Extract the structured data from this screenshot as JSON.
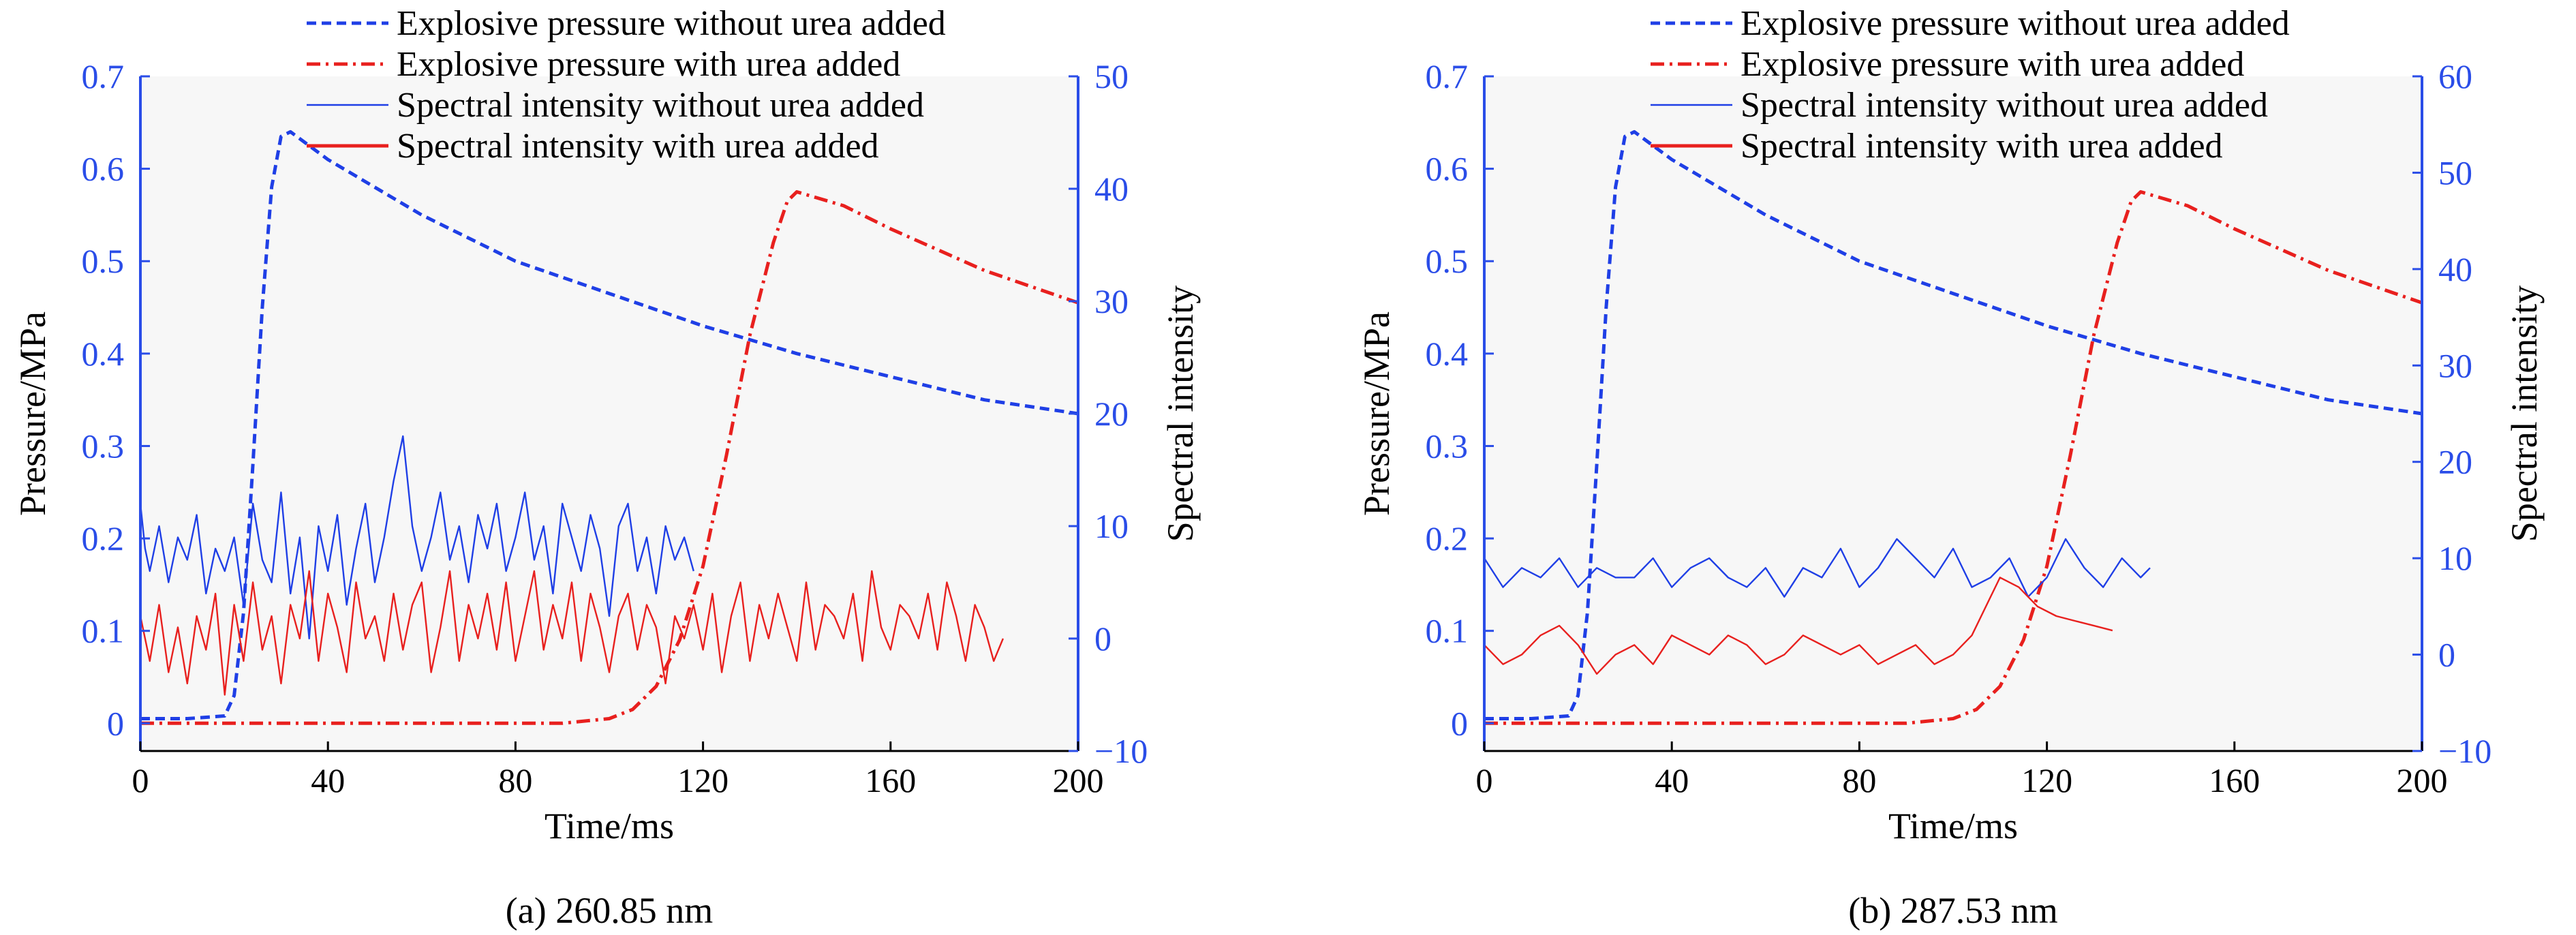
{
  "chart_data": [
    {
      "type": "line",
      "caption": "(a) 260.85 nm",
      "xlabel": "Time/ms",
      "ylabel_left": "Pressure/MPa",
      "ylabel_right": "Spectral intensity",
      "xlim": [
        0,
        200
      ],
      "ylim_left": [
        -0.03,
        0.7
      ],
      "ylim_right": [
        -10,
        50
      ],
      "x_ticks": [
        "0",
        "40",
        "80",
        "120",
        "160",
        "200"
      ],
      "left_ticks": [
        "0",
        "0.1",
        "0.2",
        "0.3",
        "0.4",
        "0.5",
        "0.6",
        "0.7"
      ],
      "right_ticks": [
        "−10",
        "0",
        "10",
        "20",
        "30",
        "40",
        "50"
      ],
      "legend": [
        "Explosive pressure without urea added",
        "Explosive pressure with urea added",
        "Spectral intensity without urea added",
        "Spectral intensity with urea added"
      ],
      "grid": false,
      "series": [
        {
          "name": "Explosive pressure without urea added",
          "axis": "left",
          "x": [
            0,
            10,
            18,
            20,
            22,
            24,
            26,
            28,
            30,
            32,
            40,
            60,
            80,
            100,
            120,
            140,
            160,
            180,
            200
          ],
          "y": [
            0.005,
            0.005,
            0.008,
            0.03,
            0.12,
            0.28,
            0.45,
            0.58,
            0.635,
            0.64,
            0.61,
            0.55,
            0.5,
            0.465,
            0.43,
            0.4,
            0.375,
            0.35,
            0.335
          ]
        },
        {
          "name": "Explosive pressure with urea added",
          "axis": "left",
          "x": [
            0,
            90,
            100,
            105,
            110,
            115,
            120,
            125,
            130,
            135,
            138,
            140,
            150,
            160,
            180,
            200
          ],
          "y": [
            0,
            0,
            0.005,
            0.015,
            0.04,
            0.09,
            0.17,
            0.29,
            0.42,
            0.52,
            0.565,
            0.575,
            0.56,
            0.535,
            0.49,
            0.455
          ]
        },
        {
          "name": "Spectral intensity without urea added",
          "axis": "right",
          "x": [
            0,
            1,
            2,
            4,
            6,
            8,
            10,
            12,
            14,
            16,
            18,
            20,
            22,
            24,
            26,
            28,
            30,
            32,
            34,
            36,
            38,
            40,
            42,
            44,
            46,
            48,
            50,
            52,
            54,
            56,
            58,
            60,
            62,
            64,
            66,
            68,
            70,
            72,
            74,
            76,
            78,
            80,
            82,
            84,
            86,
            88,
            90,
            92,
            94,
            96,
            98,
            100,
            102,
            104,
            106,
            108,
            110,
            112,
            114,
            116,
            118
          ],
          "y": [
            12,
            8,
            6,
            10,
            5,
            9,
            7,
            11,
            4,
            8,
            6,
            9,
            3,
            12,
            7,
            5,
            13,
            4,
            9,
            0,
            10,
            6,
            11,
            3,
            8,
            12,
            5,
            9,
            14,
            18,
            10,
            6,
            9,
            13,
            7,
            10,
            5,
            11,
            8,
            12,
            6,
            9,
            13,
            7,
            10,
            4,
            12,
            9,
            6,
            11,
            8,
            2,
            10,
            12,
            6,
            9,
            4,
            10,
            7,
            9,
            6
          ]
        },
        {
          "name": "Spectral intensity with urea added",
          "axis": "right",
          "x": [
            0,
            2,
            4,
            6,
            8,
            10,
            12,
            14,
            16,
            18,
            20,
            22,
            24,
            26,
            28,
            30,
            32,
            34,
            36,
            38,
            40,
            42,
            44,
            46,
            48,
            50,
            52,
            54,
            56,
            58,
            60,
            62,
            64,
            66,
            68,
            70,
            72,
            74,
            76,
            78,
            80,
            82,
            84,
            86,
            88,
            90,
            92,
            94,
            96,
            98,
            100,
            102,
            104,
            106,
            108,
            110,
            112,
            114,
            116,
            118,
            120,
            122,
            124,
            126,
            128,
            130,
            132,
            134,
            136,
            138,
            140,
            142,
            144,
            146,
            148,
            150,
            152,
            154,
            156,
            158,
            160,
            162,
            164,
            166,
            168,
            170,
            172,
            174,
            176,
            178,
            180,
            182,
            184
          ],
          "y": [
            2,
            -2,
            3,
            -3,
            1,
            -4,
            2,
            -1,
            4,
            -5,
            3,
            -2,
            5,
            -1,
            2,
            -4,
            3,
            0,
            6,
            -2,
            4,
            1,
            -3,
            5,
            0,
            2,
            -2,
            4,
            -1,
            3,
            5,
            -3,
            1,
            6,
            -2,
            3,
            0,
            4,
            -1,
            5,
            -2,
            2,
            6,
            -1,
            3,
            0,
            5,
            -2,
            4,
            1,
            -3,
            2,
            4,
            -1,
            3,
            1,
            -4,
            2,
            0,
            3,
            -1,
            4,
            -3,
            2,
            5,
            -2,
            3,
            0,
            4,
            1,
            -2,
            5,
            -1,
            3,
            2,
            0,
            4,
            -2,
            6,
            1,
            -1,
            3,
            2,
            0,
            4,
            -1,
            5,
            2,
            -2,
            3,
            1,
            -2,
            0
          ]
        }
      ]
    },
    {
      "type": "line",
      "caption": "(b) 287.53 nm",
      "xlabel": "Time/ms",
      "ylabel_left": "Pressure/MPa",
      "ylabel_right": "Spectral intensity",
      "xlim": [
        0,
        200
      ],
      "ylim_left": [
        -0.03,
        0.7
      ],
      "ylim_right": [
        -10,
        60
      ],
      "x_ticks": [
        "0",
        "40",
        "80",
        "120",
        "160",
        "200"
      ],
      "left_ticks": [
        "0",
        "0.1",
        "0.2",
        "0.3",
        "0.4",
        "0.5",
        "0.6",
        "0.7"
      ],
      "right_ticks": [
        "−10",
        "0",
        "10",
        "20",
        "30",
        "40",
        "50",
        "60"
      ],
      "legend": [
        "Explosive pressure without urea added",
        "Explosive pressure with urea added",
        "Spectral intensity without urea added",
        "Spectral intensity with urea added"
      ],
      "grid": false,
      "series": [
        {
          "name": "Explosive pressure without urea added",
          "axis": "left",
          "x": [
            0,
            10,
            18,
            20,
            22,
            24,
            26,
            28,
            30,
            32,
            40,
            60,
            80,
            100,
            120,
            140,
            160,
            180,
            200
          ],
          "y": [
            0.005,
            0.005,
            0.008,
            0.03,
            0.12,
            0.28,
            0.45,
            0.58,
            0.635,
            0.64,
            0.61,
            0.55,
            0.5,
            0.465,
            0.43,
            0.4,
            0.375,
            0.35,
            0.335
          ]
        },
        {
          "name": "Explosive pressure with urea added",
          "axis": "left",
          "x": [
            0,
            90,
            100,
            105,
            110,
            115,
            120,
            125,
            130,
            135,
            138,
            140,
            150,
            160,
            180,
            200
          ],
          "y": [
            0,
            0,
            0.005,
            0.015,
            0.04,
            0.09,
            0.17,
            0.29,
            0.42,
            0.52,
            0.565,
            0.575,
            0.56,
            0.535,
            0.49,
            0.455
          ]
        },
        {
          "name": "Spectral intensity without urea added",
          "axis": "right",
          "x": [
            0,
            4,
            8,
            12,
            16,
            20,
            24,
            28,
            32,
            36,
            40,
            44,
            48,
            52,
            56,
            60,
            64,
            68,
            72,
            76,
            80,
            84,
            88,
            92,
            96,
            100,
            104,
            108,
            112,
            116,
            120,
            124,
            128,
            132,
            136,
            140,
            142
          ],
          "y": [
            10,
            7,
            9,
            8,
            10,
            7,
            9,
            8,
            8,
            10,
            7,
            9,
            10,
            8,
            7,
            9,
            6,
            9,
            8,
            11,
            7,
            9,
            12,
            10,
            8,
            11,
            7,
            8,
            10,
            6,
            8,
            12,
            9,
            7,
            10,
            8,
            9
          ]
        },
        {
          "name": "Spectral intensity with urea added",
          "axis": "right",
          "x": [
            0,
            4,
            8,
            12,
            16,
            20,
            24,
            28,
            32,
            36,
            40,
            44,
            48,
            52,
            56,
            60,
            64,
            68,
            72,
            76,
            80,
            84,
            88,
            92,
            96,
            100,
            104,
            108,
            110,
            114,
            118,
            122,
            126,
            130,
            134
          ],
          "y": [
            1,
            -1,
            0,
            2,
            3,
            1,
            -2,
            0,
            1,
            -1,
            2,
            1,
            0,
            2,
            1,
            -1,
            0,
            2,
            1,
            0,
            1,
            -1,
            0,
            1,
            -1,
            0,
            2,
            6,
            8,
            7,
            5,
            4,
            3.5,
            3,
            2.5
          ]
        }
      ]
    }
  ]
}
